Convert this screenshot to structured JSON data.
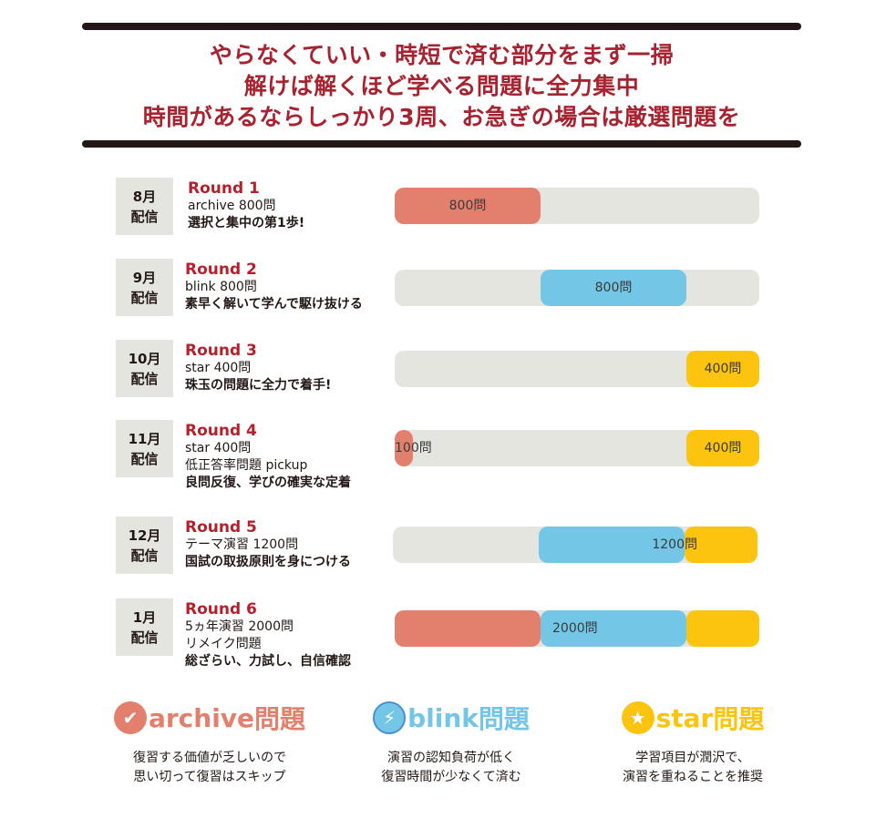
{
  "headline": {
    "lines": [
      "やらなくていい・時短で済む部分をまず一掃",
      "解けば解くほど学べる問題に全力集中",
      "時間があるならしっかり3周、お急ぎの場合は厳選問題を"
    ]
  },
  "colors": {
    "archive": "#e37f6d",
    "blink": "#73c6e6",
    "star": "#fcc40f",
    "accent": "#b5202c",
    "track": "#e5e5e0"
  },
  "rounds": [
    {
      "month": "8月",
      "delivery": "配信",
      "round": "Round 1",
      "lines": [
        "archive 800問"
      ],
      "desc": "選択と集中の第1歩!",
      "segments": [
        {
          "series": "archive",
          "start": 0,
          "end": 0.4,
          "label": "800問"
        }
      ]
    },
    {
      "month": "9月",
      "delivery": "配信",
      "round": "Round 2",
      "lines": [
        "blink 800問"
      ],
      "desc": "素早く解いて学んで駆け抜ける",
      "segments": [
        {
          "series": "blink",
          "start": 0.4,
          "end": 0.8,
          "label": "800問"
        }
      ]
    },
    {
      "month": "10月",
      "delivery": "配信",
      "round": "Round 3",
      "lines": [
        "star 400問"
      ],
      "desc": "珠玉の問題に全力で着手!",
      "segments": [
        {
          "series": "star",
          "start": 0.8,
          "end": 1,
          "label": "400問"
        }
      ]
    },
    {
      "month": "11月",
      "delivery": "配信",
      "round": "Round 4",
      "lines": [
        "star 400問",
        "低正答率問題 pickup"
      ],
      "desc": "良問反復、学びの確実な定着",
      "segments": [
        {
          "series": "archive",
          "start": 0,
          "end": 0.05,
          "label": "100問"
        },
        {
          "series": "star",
          "start": 0.8,
          "end": 1,
          "label": "400問"
        }
      ]
    },
    {
      "month": "12月",
      "delivery": "配信",
      "round": "Round 5",
      "lines": [
        "テーマ演習 1200問"
      ],
      "desc": "国試の取扱原則を身につける",
      "segments": [
        {
          "series": "blink",
          "start": 0.4,
          "end": 0.8,
          "label": ""
        },
        {
          "series": "star",
          "start": 0.8,
          "end": 1,
          "label": ""
        }
      ],
      "label": "1200問"
    },
    {
      "month": "1月",
      "delivery": "配信",
      "round": "Round 6",
      "lines": [
        "5ヵ年演習 2000問",
        "リメイク問題"
      ],
      "desc": "総ざらい、力試し、自信確認",
      "segments": [
        {
          "series": "archive",
          "start": 0,
          "end": 0.4,
          "label": ""
        },
        {
          "series": "blink",
          "start": 0.4,
          "end": 0.8,
          "label": ""
        },
        {
          "series": "star",
          "start": 0.8,
          "end": 1,
          "label": ""
        }
      ],
      "label": "2000問"
    }
  ],
  "legend": [
    {
      "series": "archive",
      "icon": "check-icon",
      "name": "archive",
      "suffix": "問題",
      "note": [
        "復習する価値が乏しいので",
        "思い切って復習はスキップ"
      ]
    },
    {
      "series": "blink",
      "icon": "lightning-icon",
      "name": "blink",
      "suffix": "問題",
      "note": [
        "演習の認知負荷が低く",
        "復習時間が少なくて済む"
      ]
    },
    {
      "series": "star",
      "icon": "star-icon",
      "name": "star",
      "suffix": "問題",
      "note": [
        "学習項目が潤沢で、",
        "演習を重ねることを推奨"
      ]
    }
  ]
}
